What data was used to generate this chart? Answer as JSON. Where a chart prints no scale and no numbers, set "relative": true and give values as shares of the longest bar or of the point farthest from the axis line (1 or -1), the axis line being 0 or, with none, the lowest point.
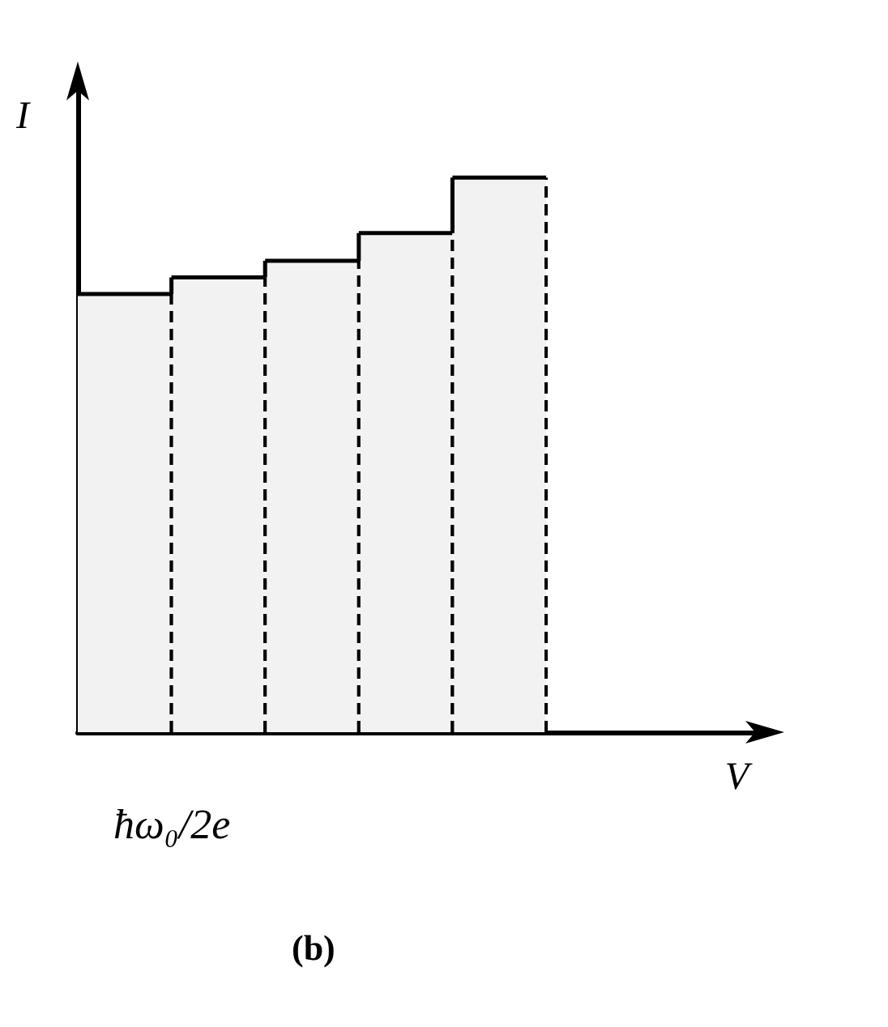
{
  "chart_data": {
    "type": "bar",
    "relative": true,
    "xlabel": "V",
    "ylabel": "I",
    "categories": [
      null,
      null,
      null,
      null,
      null
    ],
    "values": [
      0.79,
      0.82,
      0.85,
      0.9,
      1
    ],
    "color": "#f2f2f2",
    "annotations": [
      "ħω₀/2e",
      "(b)"
    ]
  }
}
